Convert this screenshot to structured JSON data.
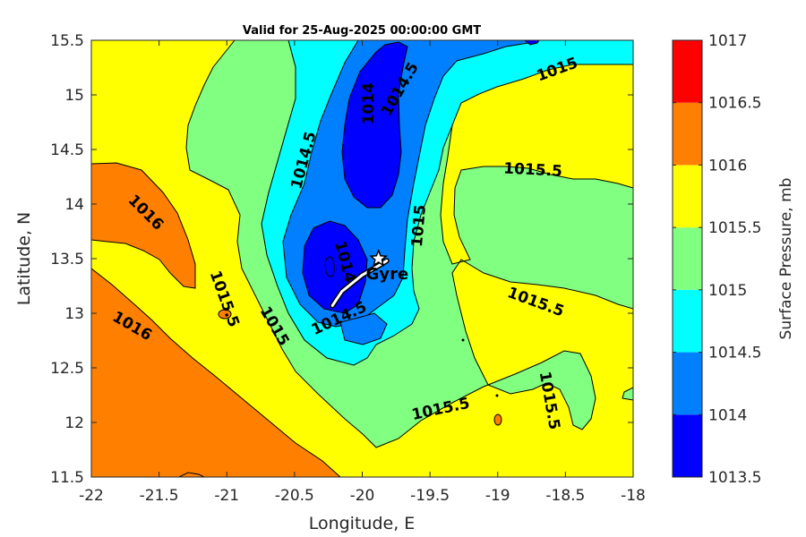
{
  "chart_data": {
    "type": "filled-contour",
    "title": "Valid for 25-Aug-2025 00:00:00 GMT",
    "xlabel": "Longitude, E",
    "ylabel": "Latitude, N",
    "xlim": [
      -22,
      -18
    ],
    "ylim": [
      11.5,
      15.5
    ],
    "xticks": [
      "-22",
      "-21.5",
      "-21",
      "-20.5",
      "-20",
      "-19.5",
      "-19",
      "-18.5",
      "-18"
    ],
    "xtick_values": [
      -22,
      -21.5,
      -21,
      -20.5,
      -20,
      -19.5,
      -19,
      -18.5,
      -18
    ],
    "yticks": [
      "11.5",
      "12",
      "12.5",
      "13",
      "13.5",
      "14",
      "14.5",
      "15",
      "15.5"
    ],
    "ytick_values": [
      11.5,
      12,
      12.5,
      13,
      13.5,
      14,
      14.5,
      15,
      15.5
    ],
    "colorbar": {
      "label": "Surface Pressure, mb",
      "ticks": [
        "1013.5",
        "1014",
        "1014.5",
        "1015",
        "1015.5",
        "1016",
        "1016.5",
        "1017"
      ],
      "tick_values": [
        1013.5,
        1014,
        1014.5,
        1015,
        1015.5,
        1016,
        1016.5,
        1017
      ],
      "colors": [
        "#0000ff",
        "#0080ff",
        "#00ffff",
        "#80ff80",
        "#ffff00",
        "#ff8000",
        "#ff0000",
        "#800000"
      ]
    },
    "contour_labels": [
      {
        "text": "1014.5",
        "lon": -20.43,
        "lat": 14.4
      },
      {
        "text": "1014",
        "lon": -19.95,
        "lat": 14.92
      },
      {
        "text": "1014.5",
        "lon": -19.72,
        "lat": 15.05
      },
      {
        "text": "1015",
        "lon": -18.56,
        "lat": 15.23
      },
      {
        "text": "1015.5",
        "lon": -18.74,
        "lat": 14.31
      },
      {
        "text": "1016",
        "lon": -21.6,
        "lat": 13.92
      },
      {
        "text": "1015",
        "lon": -19.58,
        "lat": 13.8
      },
      {
        "text": "1014",
        "lon": -20.13,
        "lat": 13.47
      },
      {
        "text": "1015.5",
        "lon": -21.02,
        "lat": 13.13
      },
      {
        "text": "1015",
        "lon": -20.65,
        "lat": 12.88
      },
      {
        "text": "1014.5",
        "lon": -20.17,
        "lat": 12.95
      },
      {
        "text": "1015.5",
        "lon": -18.72,
        "lat": 13.1
      },
      {
        "text": "1016",
        "lon": -21.7,
        "lat": 12.88
      },
      {
        "text": "1015.5",
        "lon": -18.62,
        "lat": 12.2
      },
      {
        "text": "1015.5",
        "lon": -19.42,
        "lat": 12.12
      }
    ],
    "storm": {
      "name": "Gyre",
      "track": [
        [
          -20.22,
          13.07
        ],
        [
          -20.15,
          13.2
        ],
        [
          -20.0,
          13.35
        ],
        [
          -19.9,
          13.42
        ],
        [
          -19.82,
          13.48
        ]
      ],
      "marker": {
        "lon": -19.88,
        "lat": 13.5
      }
    }
  }
}
